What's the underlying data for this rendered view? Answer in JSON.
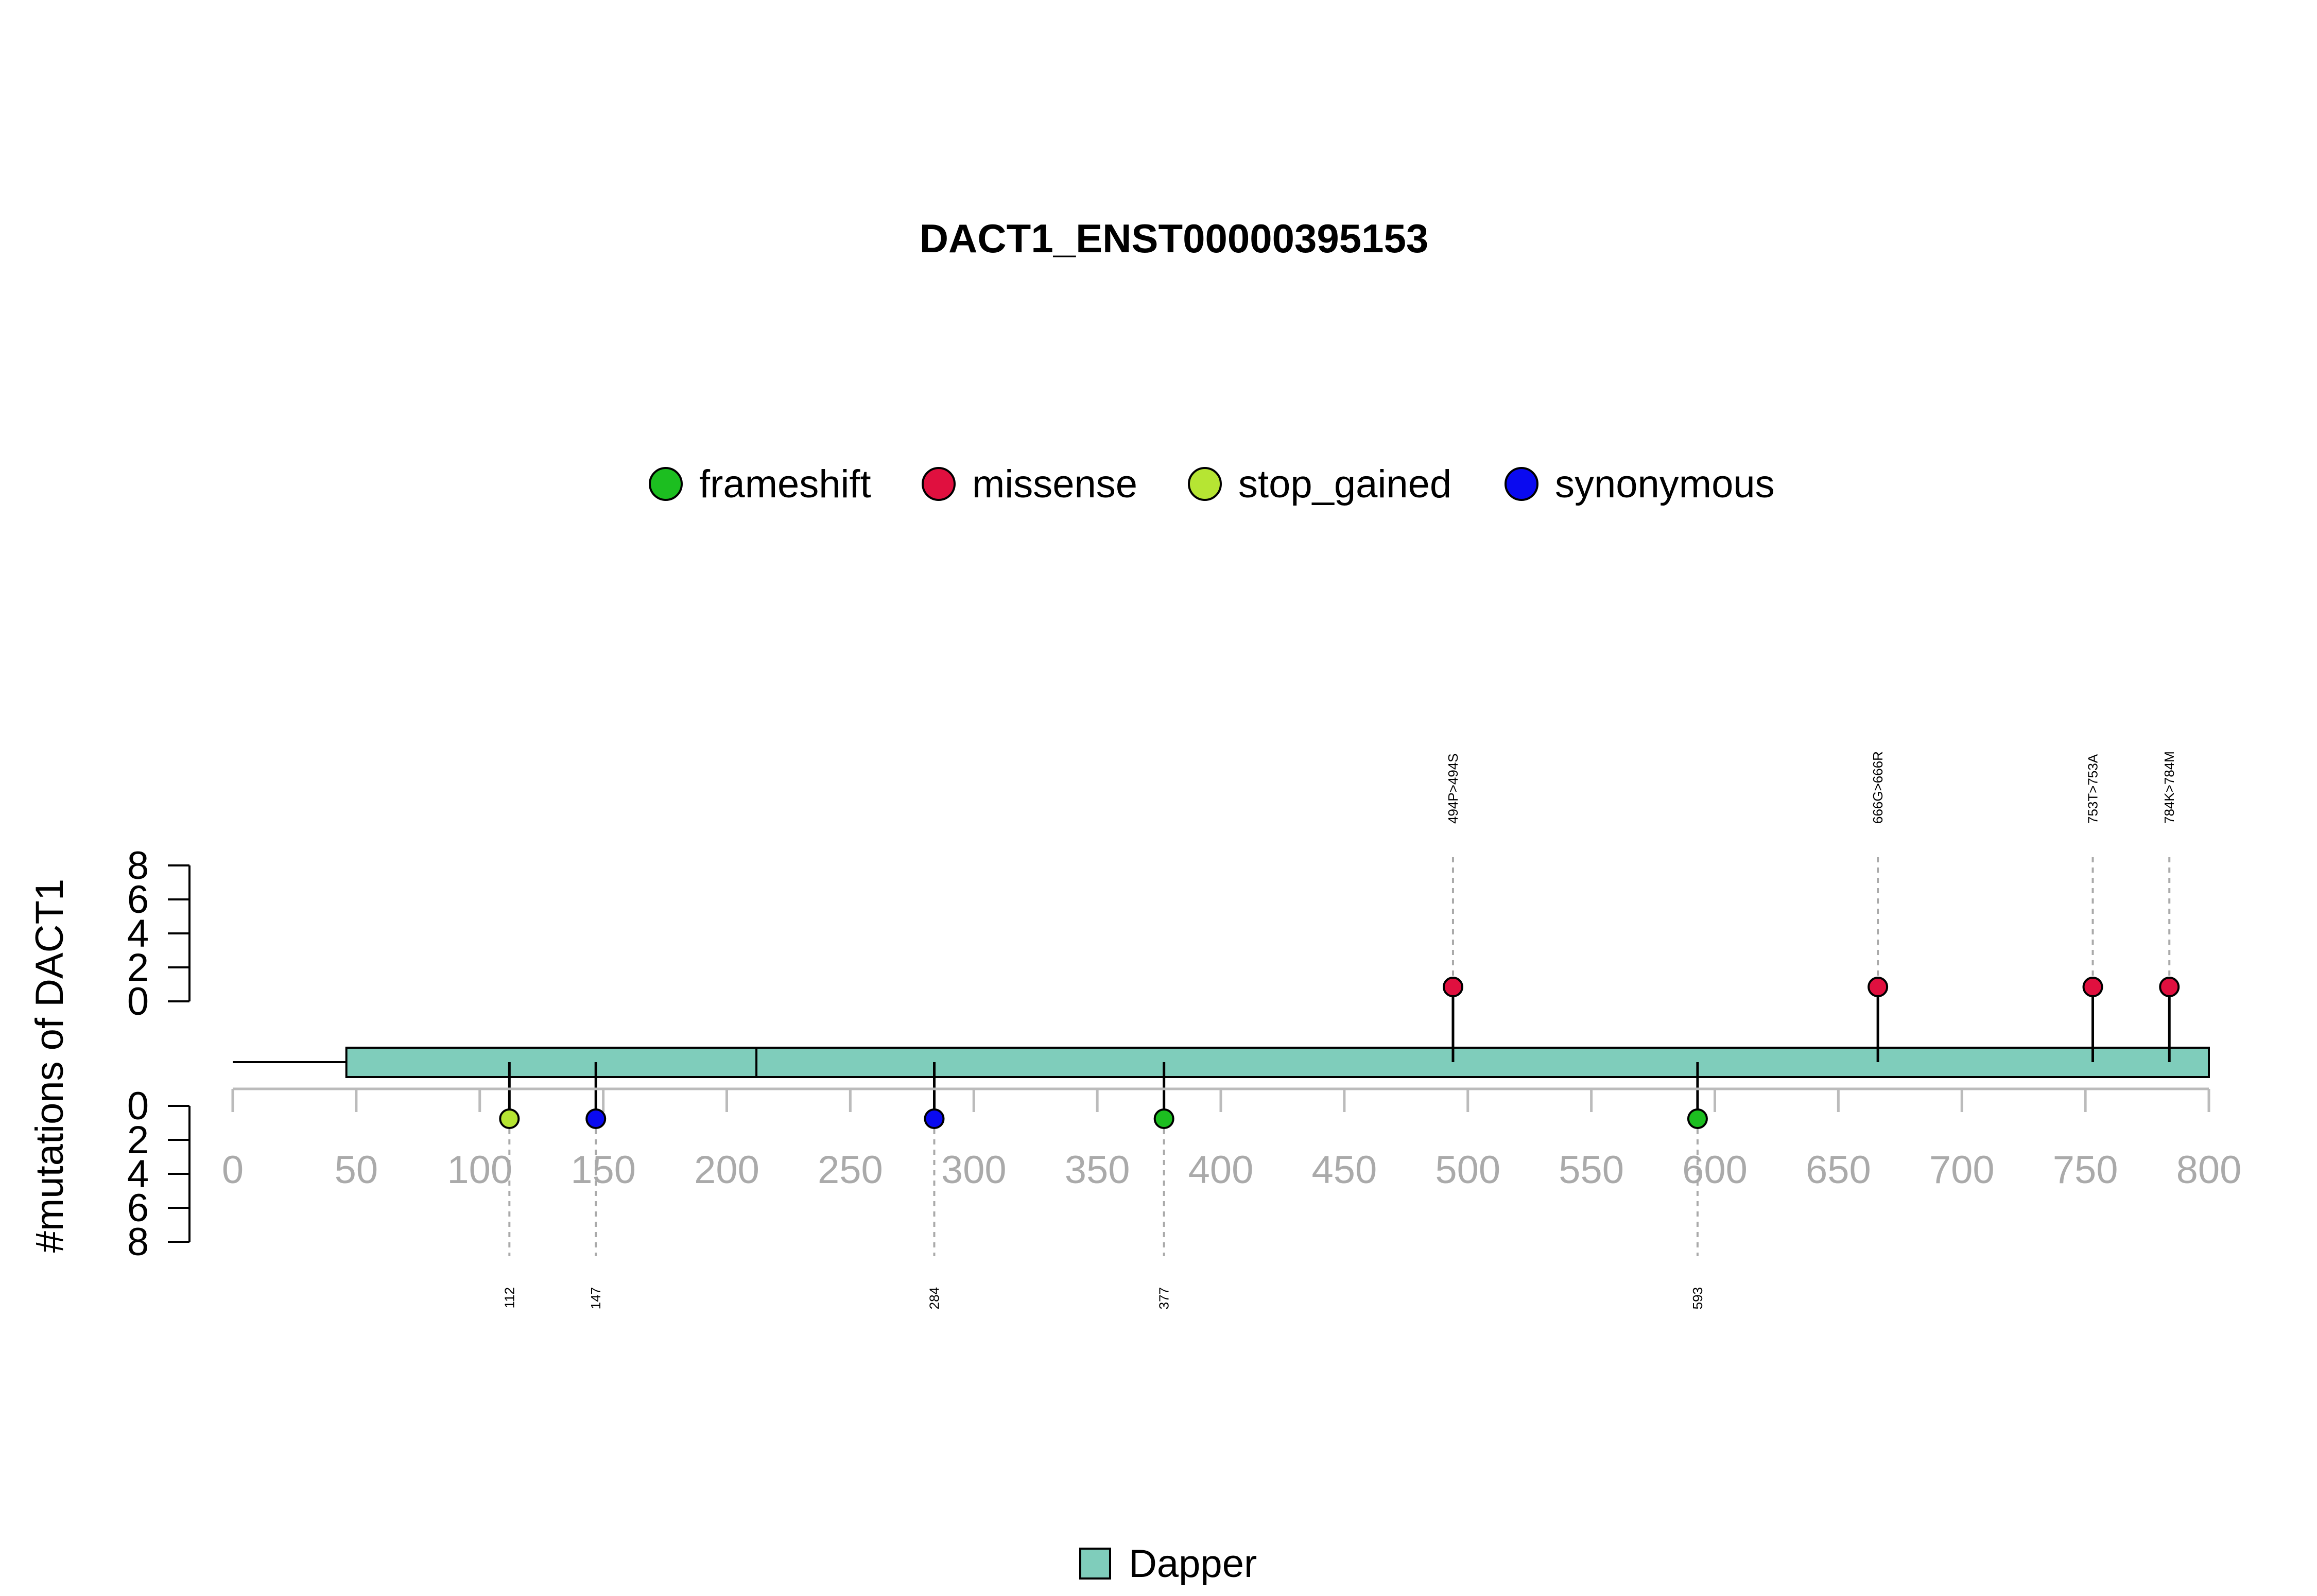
{
  "chart_data": {
    "type": "lollipop",
    "title": "DACT1_ENST00000395153",
    "ylabel": "#mutations of DACT1",
    "xlim": [
      0,
      800
    ],
    "x_ticks": [
      0,
      50,
      100,
      150,
      200,
      250,
      300,
      350,
      400,
      450,
      500,
      550,
      600,
      650,
      700,
      750,
      800
    ],
    "y_ticks_upper": [
      0,
      2,
      4,
      6,
      8
    ],
    "y_ticks_lower": [
      0,
      2,
      4,
      6,
      8
    ],
    "protein_length": 800,
    "legend_mutation_types": [
      {
        "name": "frameshift",
        "color": "#1CBE20"
      },
      {
        "name": "missense",
        "color": "#E0103F"
      },
      {
        "name": "stop_gained",
        "color": "#B6E533"
      },
      {
        "name": "synonymous",
        "color": "#0A0AF0"
      }
    ],
    "domains": [
      {
        "name": "Dapper",
        "start": 46,
        "end": 800,
        "color": "#7FCDBB"
      }
    ],
    "domain_legend_label": "Dapper",
    "mutations_upper": [
      {
        "position": 494,
        "label": "494P>494S",
        "type": "missense",
        "count": 1
      },
      {
        "position": 666,
        "label": "666G>666R",
        "type": "missense",
        "count": 1
      },
      {
        "position": 753,
        "label": "753T>753A",
        "type": "missense",
        "count": 1
      },
      {
        "position": 784,
        "label": "784K>784M",
        "type": "missense",
        "count": 1
      }
    ],
    "mutations_lower": [
      {
        "position": 112,
        "label": "112",
        "type": "stop_gained",
        "count": 1
      },
      {
        "position": 147,
        "label": "147",
        "type": "synonymous",
        "count": 1
      },
      {
        "position": 284,
        "label": "284",
        "type": "synonymous",
        "count": 1
      },
      {
        "position": 377,
        "label": "377",
        "type": "frameshift",
        "count": 1
      },
      {
        "position": 593,
        "label": "593",
        "type": "frameshift",
        "count": 1
      }
    ]
  }
}
